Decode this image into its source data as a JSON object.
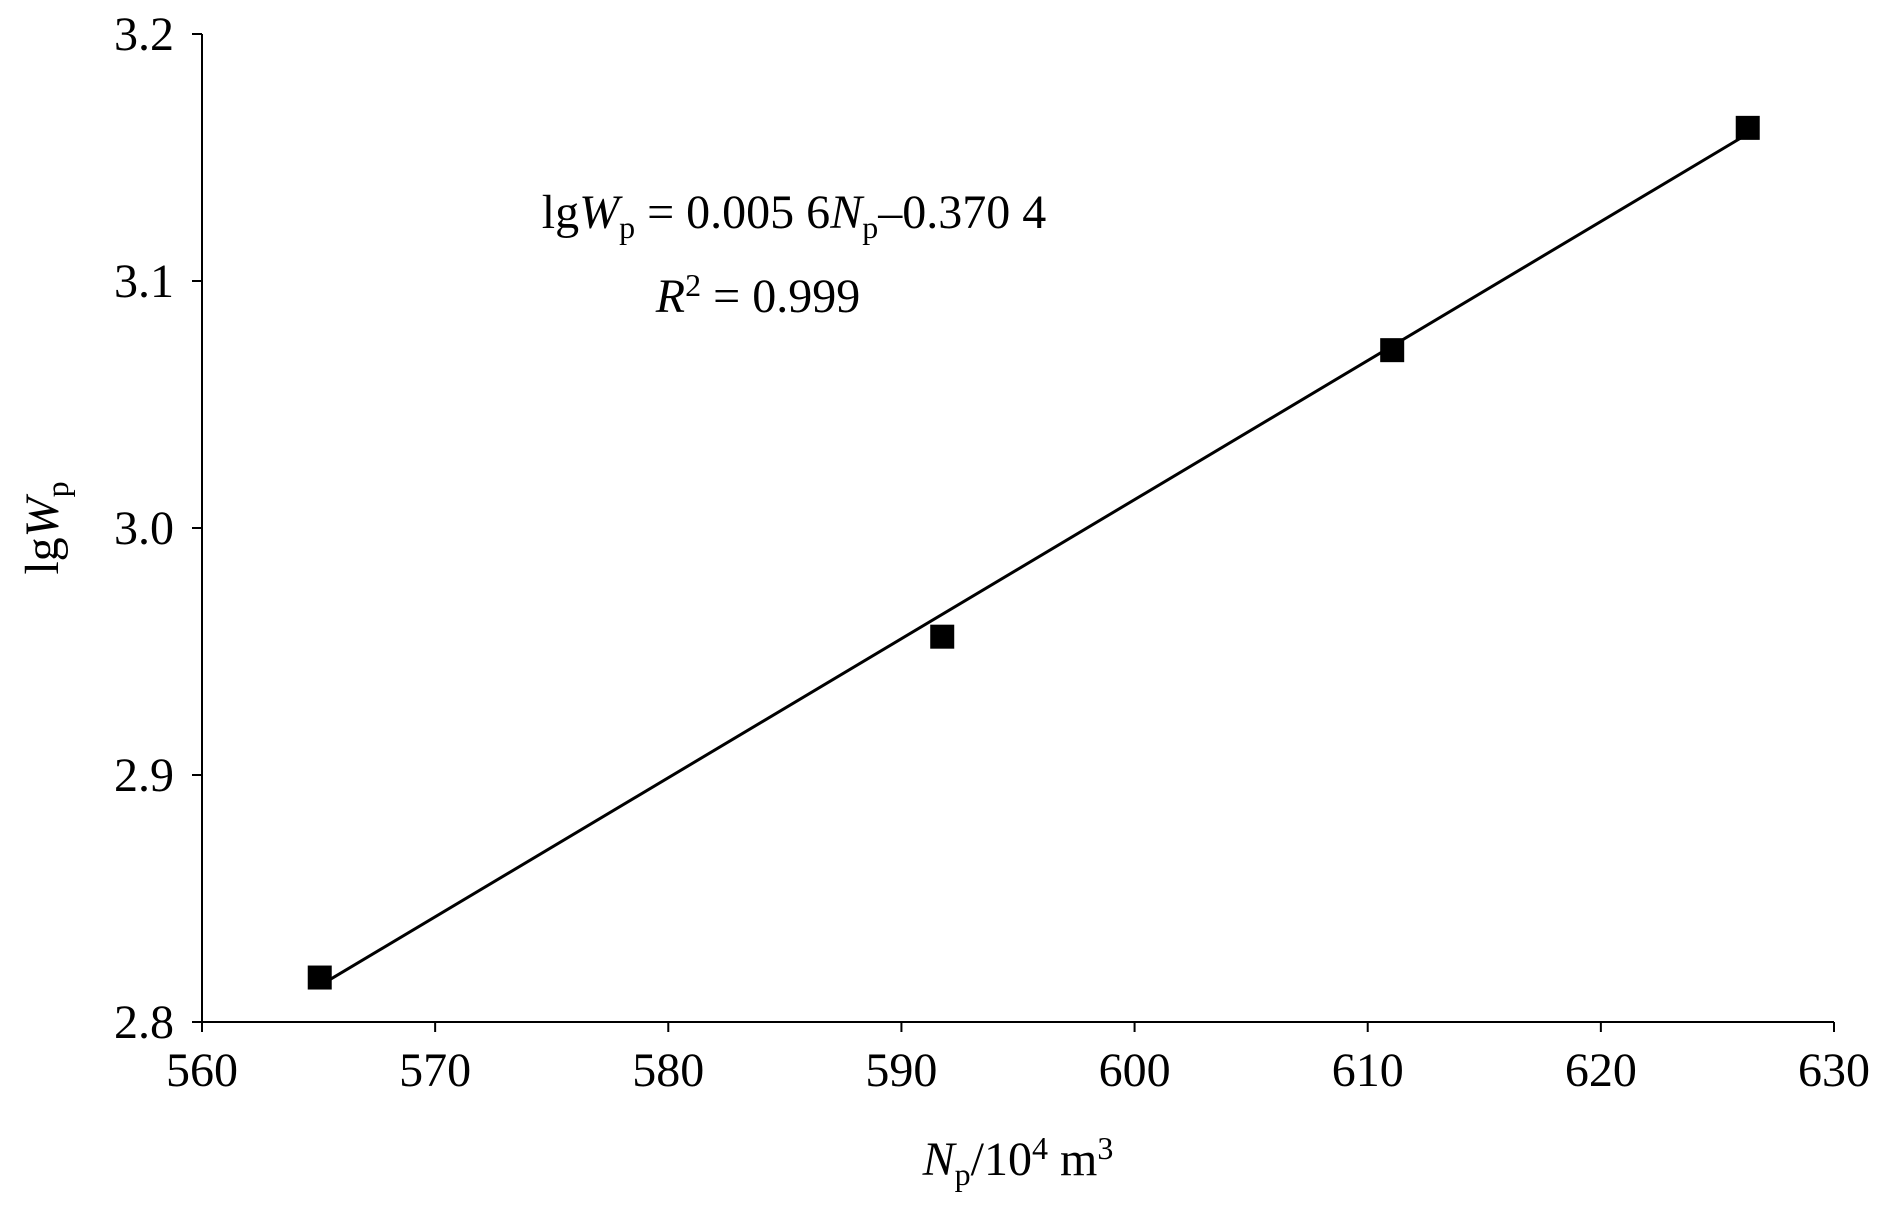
{
  "chart_data": {
    "type": "scatter",
    "x": [
      565.05,
      591.75,
      611.05,
      626.3
    ],
    "values": [
      2.818,
      2.956,
      3.072,
      3.162
    ],
    "color": "#000000",
    "trendline": {
      "x": [
        565.1,
        626.2
      ],
      "y": [
        2.815,
        3.159
      ]
    },
    "equation": [
      "lg",
      "W",
      "p",
      " = 0.005 6",
      "N",
      "p",
      "–0.370 4"
    ],
    "r_squared": [
      "R",
      "2",
      " = 0.999"
    ],
    "x_label": [
      "N",
      "p",
      "/10",
      "4",
      " m",
      "3"
    ],
    "y_label": [
      "lg",
      "W",
      "p"
    ],
    "xlim": [
      560,
      630
    ],
    "xticks": [
      560,
      570,
      580,
      590,
      600,
      610,
      620,
      630
    ],
    "ylim": [
      2.8,
      3.2
    ],
    "yticks": [
      {
        "value": 2.8,
        "label": "2.8"
      },
      {
        "value": 2.9,
        "label": "2.9"
      },
      {
        "value": 3.0,
        "label": "3.0"
      },
      {
        "value": 3.1,
        "label": "3.1"
      },
      {
        "value": 3.2,
        "label": "3.2"
      }
    ],
    "grid": false
  }
}
